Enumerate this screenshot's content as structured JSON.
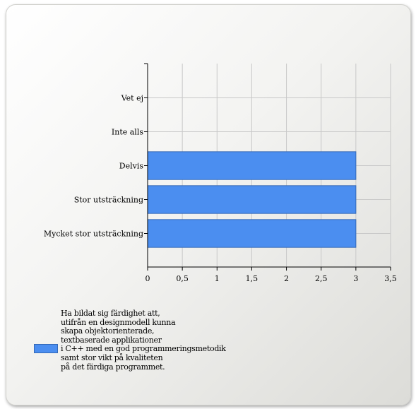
{
  "chart_data": {
    "type": "bar",
    "orientation": "horizontal",
    "categories": [
      "Vet ej",
      "Inte alls",
      "Delvis",
      "Stor utsträckning",
      "Mycket stor utsträckning"
    ],
    "series": [
      {
        "name": "Ha bildat sig färdighet att,\nutifrån en designmodell kunna\nskapa objektorienterade,\ntextbaserade applikationer\ni C++ med en god programmeringsmetodik\nsamt stor vikt på kvaliteten\npå det färdiga programmet.",
        "values": [
          0,
          0,
          3,
          3,
          3
        ]
      }
    ],
    "xticks": [
      "0",
      "0,5",
      "1",
      "1,5",
      "2",
      "2,5",
      "3",
      "3,5"
    ],
    "xlim": [
      0,
      3.5
    ],
    "grid": true,
    "legend_position": "bottom-left",
    "colors": {
      "bar": "#4b8ef0",
      "bar_border": "#3469b8",
      "grid": "#c8c8c8"
    }
  }
}
